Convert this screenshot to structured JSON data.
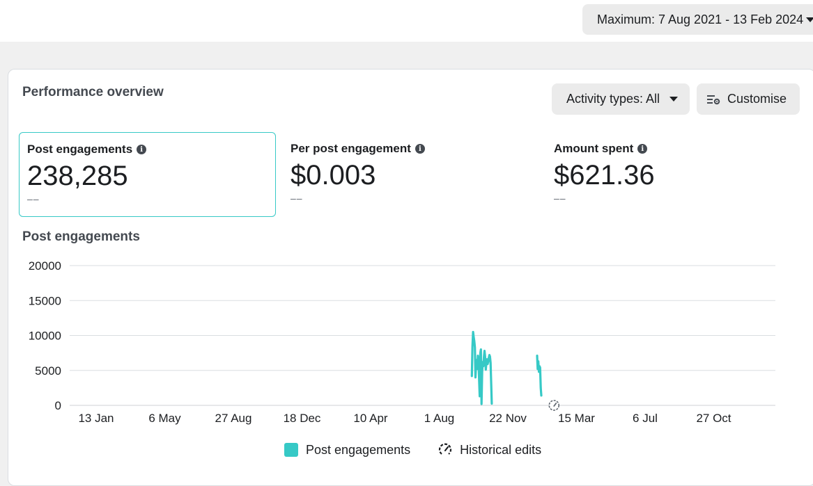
{
  "header": {
    "date_range": "Maximum: 7 Aug 2021 - 13 Feb 2024"
  },
  "overview": {
    "title": "Performance overview",
    "activity_button": "Activity types: All",
    "customise_button": "Customise"
  },
  "metrics": [
    {
      "label": "Post engagements",
      "value": "238,285",
      "change": "––"
    },
    {
      "label": "Per post engagement",
      "value": "$0.003",
      "change": "––"
    },
    {
      "label": "Amount spent",
      "value": "$621.36",
      "change": "––"
    }
  ],
  "chart": {
    "title": "Post engagements"
  },
  "chart_data": {
    "type": "line",
    "title": "Post engagements",
    "xlabel": "",
    "ylabel": "",
    "ylim": [
      0,
      20000
    ],
    "yticks": [
      "20000",
      "15000",
      "10000",
      "5000",
      "0"
    ],
    "xticks": [
      "13 Jan",
      "6 May",
      "27 Aug",
      "18 Dec",
      "10 Apr",
      "1 Aug",
      "22 Nov",
      "15 Mar",
      "6 Jul",
      "27 Oct"
    ],
    "grid": true,
    "legend_position": "bottom",
    "series": [
      {
        "name": "Post engagements",
        "color": "#36c9c6",
        "segments": [
          {
            "x": [
              "2023-09-27",
              "2023-09-28",
              "2023-09-29",
              "2023-09-30",
              "2023-10-01",
              "2023-10-02",
              "2023-10-03",
              "2023-10-04",
              "2023-10-05",
              "2023-10-06",
              "2023-10-07",
              "2023-10-08",
              "2023-10-09",
              "2023-10-10",
              "2023-10-11",
              "2023-10-12",
              "2023-10-13",
              "2023-10-14",
              "2023-10-15",
              "2023-10-16",
              "2023-10-17",
              "2023-10-18",
              "2023-10-19",
              "2023-10-20",
              "2023-10-21",
              "2023-10-22",
              "2023-10-23",
              "2023-10-24",
              "2023-10-25",
              "2023-10-26",
              "2023-10-27",
              "2023-10-28",
              "2023-10-29",
              "2023-10-30"
            ],
            "y": [
              4200,
              8500,
              10500,
              9800,
              9200,
              8300,
              4000,
              5800,
              6500,
              5200,
              7100,
              6400,
              3800,
              1300,
              7500,
              8000,
              200,
              4800,
              6200,
              5600,
              7000,
              7800,
              6900,
              5100,
              6000,
              6600,
              5900,
              6200,
              6800,
              7200,
              7000,
              6100,
              3000,
              250
            ]
          },
          {
            "x": [
              "2024-01-13",
              "2024-01-14",
              "2024-01-15",
              "2024-01-16",
              "2024-01-17",
              "2024-01-18",
              "2024-01-19",
              "2024-01-20"
            ],
            "y": [
              7100,
              5200,
              6300,
              4800,
              5600,
              5400,
              2500,
              1400
            ]
          }
        ]
      }
    ],
    "historical_edits": [
      "2024-02-10"
    ]
  },
  "legend": {
    "series": "Post engagements",
    "edits": "Historical edits"
  },
  "icons": {
    "info": "info-icon",
    "caret": "caret-down-icon",
    "customise": "settings-sliders-icon",
    "historical_edit": "gauge-icon"
  }
}
